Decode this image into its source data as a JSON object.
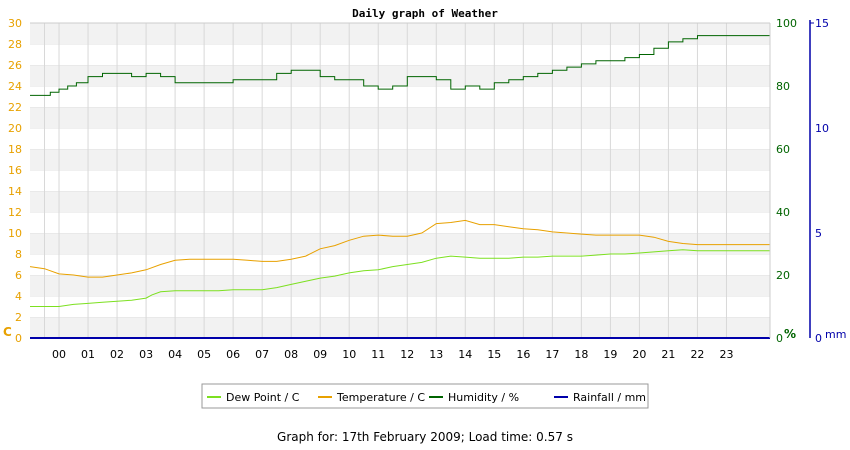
{
  "chart_data": {
    "type": "line",
    "title": "Daily graph of Weather",
    "x_tick_labels": [
      "00",
      "01",
      "02",
      "03",
      "04",
      "05",
      "06",
      "07",
      "08",
      "09",
      "10",
      "11",
      "12",
      "13",
      "14",
      "15",
      "16",
      "17",
      "18",
      "19",
      "20",
      "21",
      "22",
      "23"
    ],
    "xlim": [
      -1,
      24.5
    ],
    "axes": {
      "left": {
        "label": "C",
        "ylim": [
          0,
          30
        ],
        "ticks": [
          0,
          2,
          4,
          6,
          8,
          10,
          12,
          14,
          16,
          18,
          20,
          22,
          24,
          26,
          28,
          30
        ],
        "color": "#e8a100"
      },
      "right_humidity": {
        "label": "%",
        "ylim": [
          0,
          100
        ],
        "ticks": [
          0,
          20,
          40,
          60,
          80,
          100
        ],
        "color": "#006400"
      },
      "right_rain": {
        "label": "mm",
        "ylim": [
          0,
          15
        ],
        "ticks": [
          0,
          5,
          10,
          15
        ],
        "color": "#0000aa"
      }
    },
    "grid": true,
    "series": [
      {
        "name": "Dew Point / C",
        "axis": "left",
        "color": "#7ce020",
        "x": [
          -1,
          -0.5,
          0,
          0.5,
          1,
          1.5,
          2,
          2.5,
          3,
          3.2,
          3.5,
          4,
          4.5,
          5,
          5.5,
          6,
          6.5,
          7,
          7.5,
          8,
          8.5,
          9,
          9.5,
          10,
          10.5,
          11,
          11.5,
          12,
          12.5,
          13,
          13.5,
          14,
          14.5,
          15,
          15.5,
          16,
          16.5,
          17,
          17.5,
          18,
          18.5,
          19,
          19.5,
          20,
          20.5,
          21,
          21.5,
          22,
          22.5,
          23,
          23.5,
          24.5
        ],
        "values": [
          3.0,
          3.0,
          3.0,
          3.2,
          3.3,
          3.4,
          3.5,
          3.6,
          3.8,
          4.1,
          4.4,
          4.5,
          4.5,
          4.5,
          4.5,
          4.6,
          4.6,
          4.6,
          4.8,
          5.1,
          5.4,
          5.7,
          5.9,
          6.2,
          6.4,
          6.5,
          6.8,
          7.0,
          7.2,
          7.6,
          7.8,
          7.7,
          7.6,
          7.6,
          7.6,
          7.7,
          7.7,
          7.8,
          7.8,
          7.8,
          7.9,
          8.0,
          8.0,
          8.1,
          8.2,
          8.3,
          8.4,
          8.3,
          8.3,
          8.3,
          8.3,
          8.3
        ]
      },
      {
        "name": "Temperature / C",
        "axis": "left",
        "color": "#e8a100",
        "x": [
          -1,
          -0.5,
          0,
          0.5,
          1,
          1.5,
          2,
          2.5,
          3,
          3.5,
          4,
          4.5,
          5,
          5.5,
          6,
          6.5,
          7,
          7.5,
          8,
          8.5,
          9,
          9.5,
          10,
          10.5,
          11,
          11.5,
          12,
          12.5,
          13,
          13.5,
          14,
          14.5,
          15,
          15.5,
          16,
          16.5,
          17,
          17.5,
          18,
          18.5,
          19,
          19.5,
          20,
          20.5,
          21,
          21.5,
          22,
          22.5,
          23,
          23.5,
          24.5
        ],
        "values": [
          6.8,
          6.6,
          6.1,
          6.0,
          5.8,
          5.8,
          6.0,
          6.2,
          6.5,
          7.0,
          7.4,
          7.5,
          7.5,
          7.5,
          7.5,
          7.4,
          7.3,
          7.3,
          7.5,
          7.8,
          8.5,
          8.8,
          9.3,
          9.7,
          9.8,
          9.7,
          9.7,
          10.0,
          10.9,
          11.0,
          11.2,
          10.8,
          10.8,
          10.6,
          10.4,
          10.3,
          10.1,
          10.0,
          9.9,
          9.8,
          9.8,
          9.8,
          9.8,
          9.6,
          9.2,
          9.0,
          8.9,
          8.9,
          8.9,
          8.9,
          8.9
        ]
      },
      {
        "name": "Humidity / %",
        "axis": "right_humidity",
        "color": "#006400",
        "step": true,
        "x": [
          -1,
          -0.6,
          -0.3,
          0,
          0.3,
          0.6,
          1,
          1.5,
          2,
          2.5,
          3,
          3.5,
          4,
          4.5,
          5,
          5.5,
          6,
          6.5,
          7,
          7.5,
          8,
          8.5,
          9,
          9.5,
          10,
          10.5,
          11,
          11.5,
          12,
          12.5,
          13,
          13.5,
          14,
          14.5,
          15,
          15.5,
          16,
          16.5,
          17,
          17.5,
          18,
          18.5,
          19,
          19.5,
          20,
          20.5,
          21,
          21.5,
          22,
          22.5,
          23,
          23.5,
          24.5
        ],
        "values": [
          77,
          77,
          78,
          79,
          80,
          81,
          83,
          84,
          84,
          83,
          84,
          83,
          81,
          81,
          81,
          81,
          82,
          82,
          82,
          84,
          85,
          85,
          83,
          82,
          82,
          80,
          79,
          80,
          83,
          83,
          82,
          79,
          80,
          79,
          81,
          82,
          83,
          84,
          85,
          86,
          87,
          88,
          88,
          89,
          90,
          92,
          94,
          95,
          96,
          96,
          96,
          96,
          96
        ]
      },
      {
        "name": "Rainfall / mm",
        "axis": "right_rain",
        "color": "#0000aa",
        "x": [
          -1,
          24.5
        ],
        "values": [
          0,
          0
        ]
      }
    ]
  },
  "footer_text": "Graph for: 17th February 2009; Load time: 0.57 s"
}
